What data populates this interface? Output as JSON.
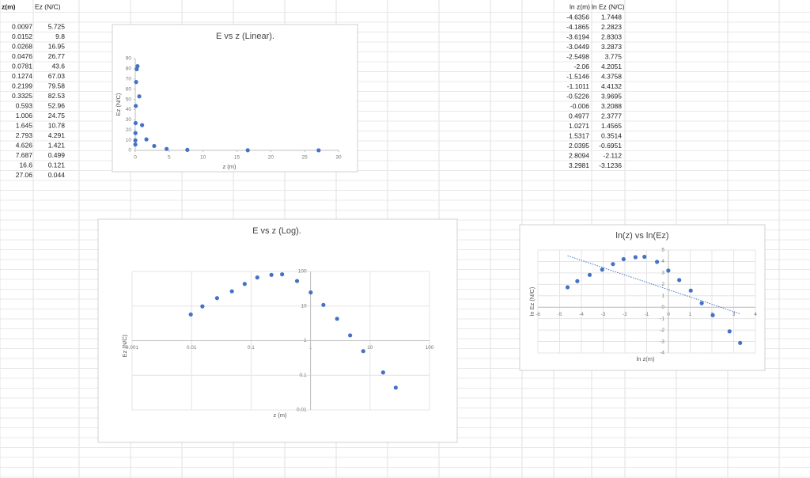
{
  "sheet": {
    "left": {
      "headers": [
        "z(m)",
        "Ez (N/C)"
      ],
      "rows": [
        [
          "0.0097",
          "5.725"
        ],
        [
          "0.0152",
          "9.8"
        ],
        [
          "0.0268",
          "16.95"
        ],
        [
          "0.0476",
          "26.77"
        ],
        [
          "0.0781",
          "43.6"
        ],
        [
          "0.1274",
          "67.03"
        ],
        [
          "0.2199",
          "79.58"
        ],
        [
          "0.3325",
          "82.53"
        ],
        [
          "0.593",
          "52.96"
        ],
        [
          "1.006",
          "24.75"
        ],
        [
          "1.645",
          "10.78"
        ],
        [
          "2.793",
          "4.291"
        ],
        [
          "4.626",
          "1.421"
        ],
        [
          "7.687",
          "0.499"
        ],
        [
          "16.6",
          "0.121"
        ],
        [
          "27.06",
          "0.044"
        ]
      ]
    },
    "right": {
      "headers": [
        "ln z(m)",
        "ln Ez (N/C)"
      ],
      "rows": [
        [
          "-4.6356",
          "1.7448"
        ],
        [
          "-4.1865",
          "2.2823"
        ],
        [
          "-3.6194",
          "2.8303"
        ],
        [
          "-3.0449",
          "3.2873"
        ],
        [
          "-2.5498",
          "3.775"
        ],
        [
          "-2.06",
          "4.2051"
        ],
        [
          "-1.5146",
          "4.3758"
        ],
        [
          "-1.1011",
          "4.4132"
        ],
        [
          "-0.5226",
          "3.9695"
        ],
        [
          "-0.006",
          "3.2088"
        ],
        [
          "0.4977",
          "2.3777"
        ],
        [
          "1.0271",
          "1.4565"
        ],
        [
          "1.5317",
          "0.3514"
        ],
        [
          "2.0395",
          "-0.6951"
        ],
        [
          "2.8094",
          "-2.112"
        ],
        [
          "3.2981",
          "-3.1236"
        ]
      ]
    }
  },
  "chart_data": [
    {
      "type": "scatter",
      "title": "E vs z (Linear).",
      "x_label": "z (m)",
      "y_label": "Ez (N/C)",
      "color": "#4472c4",
      "grid": false,
      "x": [
        0.0097,
        0.0152,
        0.0268,
        0.0476,
        0.0781,
        0.1274,
        0.2199,
        0.3325,
        0.593,
        1.006,
        1.645,
        2.793,
        4.626,
        7.687,
        16.6,
        27.06
      ],
      "values": [
        5.725,
        9.8,
        16.95,
        26.77,
        43.6,
        67.03,
        79.58,
        82.53,
        52.96,
        24.75,
        10.78,
        4.291,
        1.421,
        0.499,
        0.121,
        0.044
      ],
      "xlim": [
        0,
        30
      ],
      "xticks": [
        0,
        5,
        10,
        15,
        20,
        25,
        30
      ],
      "ylim": [
        0,
        90
      ],
      "yticks": [
        0,
        10,
        20,
        30,
        40,
        50,
        60,
        70,
        80,
        90
      ]
    },
    {
      "type": "scatter",
      "title": "E vs z (Log).",
      "x_label": "z (m)",
      "y_label": "Ez (N/C)",
      "color": "#4472c4",
      "grid": true,
      "xlog": true,
      "ylog": true,
      "x": [
        0.0097,
        0.0152,
        0.0268,
        0.0476,
        0.0781,
        0.1274,
        0.2199,
        0.3325,
        0.593,
        1.006,
        1.645,
        2.793,
        4.626,
        7.687,
        16.6,
        27.06
      ],
      "values": [
        5.725,
        9.8,
        16.95,
        26.77,
        43.6,
        67.03,
        79.58,
        82.53,
        52.96,
        24.75,
        10.78,
        4.291,
        1.421,
        0.499,
        0.121,
        0.044
      ],
      "xlim": [
        0.001,
        100
      ],
      "xticks": [
        0.001,
        0.01,
        0.1,
        1,
        10,
        100
      ],
      "ylim": [
        0.01,
        100
      ],
      "yticks": [
        0.01,
        0.1,
        1,
        10,
        100
      ]
    },
    {
      "type": "scatter",
      "title": "ln(z) vs ln(Ez)",
      "x_label": "ln z(m)",
      "y_label": "ln Ez (N/C)",
      "color": "#4472c4",
      "grid": true,
      "trendline": "linear",
      "x": [
        -4.6356,
        -4.1865,
        -3.6194,
        -3.0449,
        -2.5498,
        -2.06,
        -1.5146,
        -1.1011,
        -0.5226,
        -0.006,
        0.4977,
        1.0271,
        1.5317,
        2.0395,
        2.8094,
        3.2981
      ],
      "values": [
        1.7448,
        2.2823,
        2.8303,
        3.2873,
        3.775,
        4.2051,
        4.3758,
        4.4132,
        3.9695,
        3.2088,
        2.3777,
        1.4565,
        0.3514,
        -0.6951,
        -2.112,
        -3.1236
      ],
      "xlim": [
        -6,
        4
      ],
      "xticks": [
        -6,
        -5,
        -4,
        -3,
        -2,
        -1,
        0,
        1,
        2,
        3,
        4
      ],
      "ylim": [
        -4,
        5
      ],
      "yticks": [
        -4,
        -3,
        -2,
        -1,
        0,
        1,
        2,
        3,
        4,
        5
      ]
    }
  ]
}
